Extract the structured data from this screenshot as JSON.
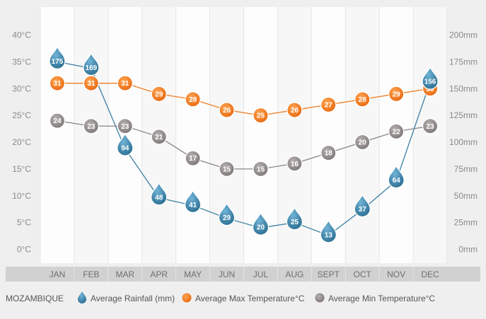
{
  "chart_data": {
    "type": "line",
    "categories": [
      "JAN",
      "FEB",
      "MAR",
      "APR",
      "MAY",
      "JUN",
      "JUL",
      "AUG",
      "SEPT",
      "OCT",
      "NOV",
      "DEC"
    ],
    "series": [
      {
        "name": "Average Rainfall (mm)",
        "axis": "right",
        "color": "#3a7fa3",
        "values": [
          175,
          169,
          94,
          48,
          41,
          29,
          20,
          25,
          13,
          37,
          64,
          156
        ]
      },
      {
        "name": "Average Max Temperature°C",
        "axis": "left",
        "color": "#f07d22",
        "values": [
          31,
          31,
          31,
          29,
          28,
          26,
          25,
          26,
          27,
          28,
          29,
          30
        ]
      },
      {
        "name": "Average Min Temperature°C",
        "axis": "left",
        "color": "#8a8585",
        "values": [
          24,
          23,
          23,
          21,
          17,
          15,
          15,
          16,
          18,
          20,
          22,
          23
        ]
      }
    ],
    "y_left": {
      "ticks": [
        "0°C",
        "5°C",
        "10°C",
        "15°C",
        "20°C",
        "25°C",
        "30°C",
        "35°C",
        "40°C"
      ],
      "range": [
        0,
        40
      ]
    },
    "y_right": {
      "ticks": [
        "0mm",
        "25mm",
        "50mm",
        "75mm",
        "100mm",
        "125mm",
        "150mm",
        "175mm",
        "200mm"
      ],
      "range": [
        0,
        200
      ]
    },
    "legend_title": "MOZAMBIQUE",
    "legend_position": "bottom",
    "grid": "alternating vertical bands"
  }
}
